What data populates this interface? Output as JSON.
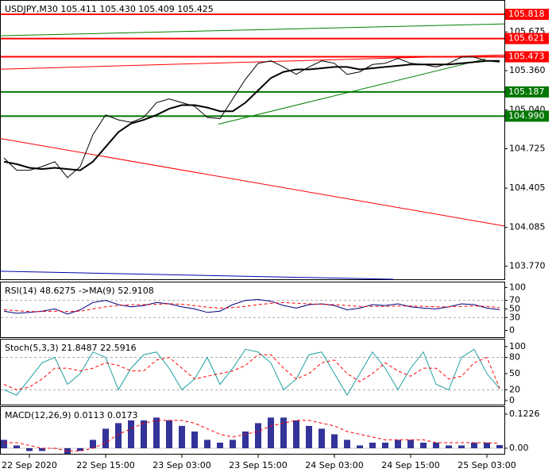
{
  "chart_data": [
    {
      "type": "line",
      "title": "USDJPY,M30 105.411 105.430 105.409 105.425",
      "categories": [
        null,
        null,
        "22 Sep 2020",
        null,
        null,
        null,
        null,
        null,
        "22 Sep 15:00",
        null,
        null,
        null,
        null,
        null,
        "23 Sep 03:00",
        null,
        null,
        null,
        null,
        null,
        "23 Sep 15:00",
        null,
        null,
        null,
        null,
        null,
        "24 Sep 03:00",
        null,
        null,
        null,
        null,
        null,
        "24 Sep 15:00",
        null,
        null,
        null,
        null,
        null,
        "25 Sep 03:00",
        null
      ],
      "series": [
        {
          "color": "#000000",
          "width": 1,
          "values": [
            104.65,
            104.55,
            104.55,
            104.58,
            104.62,
            104.49,
            104.58,
            104.84,
            105.0,
            104.96,
            104.94,
            104.98,
            105.1,
            105.13,
            105.1,
            105.07,
            104.98,
            104.97,
            105.13,
            105.29,
            105.42,
            105.44,
            105.39,
            105.33,
            105.39,
            105.44,
            105.42,
            105.33,
            105.35,
            105.41,
            105.42,
            105.46,
            105.42,
            105.41,
            105.39,
            105.42,
            105.47,
            105.47,
            105.44,
            105.43
          ]
        },
        {
          "color": "#000000",
          "width": 2,
          "values": [
            104.62,
            104.6,
            104.57,
            104.56,
            104.57,
            104.56,
            104.55,
            104.62,
            104.74,
            104.86,
            104.93,
            104.96,
            105.0,
            105.05,
            105.08,
            105.08,
            105.06,
            105.03,
            105.03,
            105.1,
            105.2,
            105.3,
            105.35,
            105.37,
            105.37,
            105.38,
            105.39,
            105.39,
            105.37,
            105.38,
            105.39,
            105.4,
            105.41,
            105.41,
            105.41,
            105.41,
            105.42,
            105.43,
            105.44,
            105.44
          ]
        }
      ],
      "ylim": [
        103.664,
        105.928
      ],
      "yticks": [
        {
          "value": 103.77,
          "label": "103.770"
        },
        104.085,
        104.405,
        104.725,
        {
          "value": 105.04,
          "label": "105.040"
        },
        {
          "value": 105.36,
          "label": "105.360"
        },
        105.675
      ],
      "levels": [
        {
          "value": 105.818,
          "color": "#ff0000"
        },
        {
          "value": 105.621,
          "color": "#ff0000"
        },
        {
          "value": 105.473,
          "color": "#ff0000"
        },
        {
          "value": 105.187,
          "color": "#007700"
        },
        {
          "value": {
            "value": 104.99,
            "label": "104.990"
          },
          "color": "#007700"
        }
      ],
      "trendlines": [
        {
          "color": "#ff0000",
          "x": [
            -0.3125,
            39.375
          ],
          "y": [
            105.372,
            105.488
          ]
        },
        {
          "color": "#008000",
          "x": [
            -0.3125,
            39.375
          ],
          "y": [
            105.643,
            105.74
          ]
        },
        {
          "color": "#ff0000",
          "x": [
            -0.3125,
            39.375
          ],
          "y": [
            104.809,
            104.097
          ]
        },
        {
          "color": "#0000aa",
          "x": [
            -0.3125,
            30.625
          ],
          "y": [
            103.729,
            103.664
          ]
        },
        {
          "color": "#008000",
          "x": [
            16.875,
            37.9
          ],
          "y": [
            104.925,
            105.456
          ]
        }
      ]
    },
    {
      "type": "line",
      "title": "RSI(14) 48.6275 ->MA(9) 52.9108",
      "series": [
        {
          "color": "#000080",
          "width": 1,
          "values": [
            45,
            40,
            42,
            45,
            50,
            38,
            48,
            65,
            70,
            60,
            55,
            58,
            65,
            62,
            55,
            50,
            42,
            45,
            60,
            70,
            72,
            68,
            58,
            52,
            60,
            62,
            58,
            48,
            52,
            60,
            58,
            62,
            55,
            52,
            50,
            55,
            62,
            60,
            52,
            48.6275
          ]
        },
        {
          "color": "#ff0000",
          "width": 1,
          "dash": true,
          "values": [
            48,
            46,
            44,
            44,
            45,
            44,
            45,
            50,
            55,
            58,
            60,
            60,
            61,
            62,
            61,
            58,
            54,
            52,
            53,
            56,
            60,
            63,
            65,
            63,
            62,
            61,
            60,
            58,
            56,
            56,
            56,
            57,
            57,
            56,
            55,
            55,
            56,
            57,
            56,
            52.9108
          ]
        }
      ],
      "ylim": [
        -15.7,
        111.8
      ],
      "yticks": [
        0,
        30,
        50,
        70,
        100
      ],
      "levels": [
        30,
        70
      ]
    },
    {
      "type": "line",
      "title": "Stoch(5,3,3) 21.8487 22.5916",
      "series": [
        {
          "color": "#20a0a0",
          "width": 1,
          "values": [
            20,
            10,
            40,
            70,
            80,
            30,
            50,
            90,
            80,
            20,
            60,
            85,
            90,
            60,
            20,
            40,
            80,
            30,
            60,
            95,
            90,
            70,
            20,
            40,
            85,
            90,
            50,
            10,
            50,
            90,
            60,
            20,
            60,
            90,
            30,
            20,
            80,
            95,
            50,
            21.8487
          ]
        },
        {
          "color": "#ff0000",
          "width": 1,
          "dash": true,
          "values": [
            30,
            20,
            25,
            40,
            60,
            60,
            55,
            60,
            70,
            65,
            55,
            55,
            75,
            80,
            60,
            40,
            45,
            50,
            55,
            65,
            85,
            85,
            60,
            40,
            50,
            70,
            75,
            50,
            35,
            50,
            70,
            55,
            45,
            60,
            60,
            40,
            45,
            70,
            80,
            22.5916
          ]
        }
      ],
      "ylim": [
        -7.4,
        113
      ],
      "yticks": [
        0,
        20,
        50,
        80,
        100
      ],
      "levels": [
        20,
        80
      ]
    },
    {
      "type": "macd",
      "title": "MACD(12,26,9) 0.0113 0.0173",
      "series": [
        {
          "color": "#000080",
          "style": "bar",
          "values": [
            0.03,
            0.01,
            -0.01,
            -0.01,
            0.0,
            -0.02,
            -0.01,
            0.03,
            0.07,
            0.09,
            0.1,
            0.1,
            0.11,
            0.1,
            0.08,
            0.06,
            0.03,
            0.02,
            0.03,
            0.06,
            0.09,
            0.11,
            0.11,
            0.1,
            0.08,
            0.07,
            0.05,
            0.03,
            0.01,
            0.02,
            0.02,
            0.03,
            0.03,
            0.02,
            0.02,
            0.01,
            0.01,
            0.02,
            0.02,
            0.0113
          ]
        },
        {
          "color": "#ff0000",
          "style": "dashed",
          "values": [
            0.02,
            0.02,
            0.01,
            0.0,
            0.0,
            -0.01,
            -0.01,
            0.0,
            0.02,
            0.05,
            0.07,
            0.09,
            0.1,
            0.1,
            0.1,
            0.09,
            0.07,
            0.05,
            0.04,
            0.05,
            0.06,
            0.08,
            0.09,
            0.1,
            0.1,
            0.09,
            0.08,
            0.06,
            0.05,
            0.04,
            0.03,
            0.03,
            0.03,
            0.03,
            0.02,
            0.02,
            0.02,
            0.02,
            0.02,
            0.0173
          ]
        }
      ],
      "ylim": [
        -0.02,
        0.148
      ],
      "yticks": [
        {
          "value": 0,
          "label": "0.00"
        },
        0.1226
      ]
    }
  ]
}
